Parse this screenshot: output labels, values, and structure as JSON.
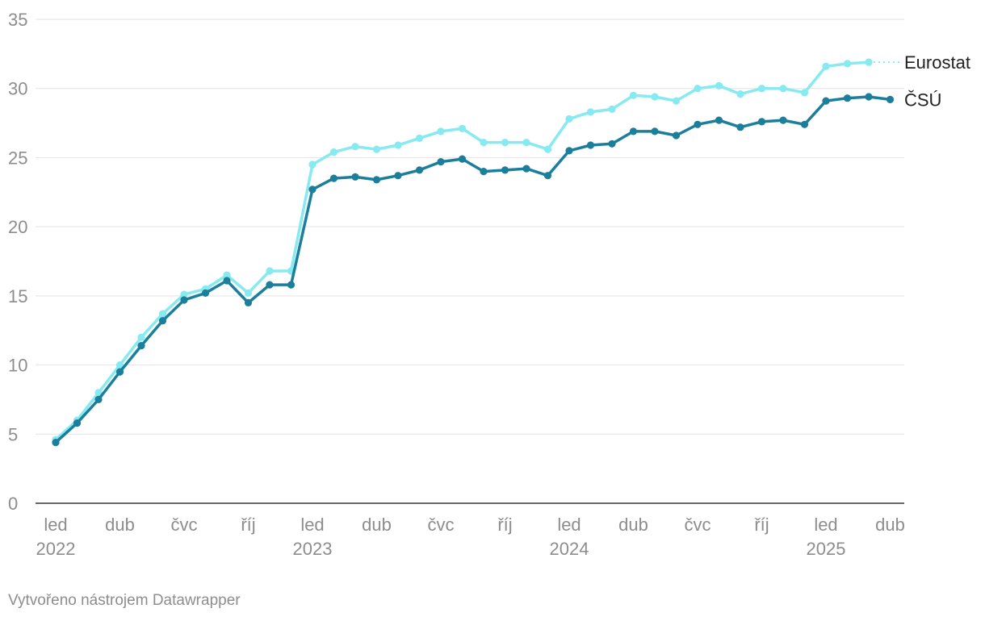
{
  "footer": {
    "credit": "Vytvořeno nástrojem Datawrapper"
  },
  "chart_data": {
    "type": "line",
    "title": "",
    "xlabel": "",
    "ylabel": "",
    "ylim": [
      0,
      35
    ],
    "y_ticks": [
      0,
      5,
      10,
      15,
      20,
      25,
      30,
      35
    ],
    "grid": true,
    "legend": "direct labels at line ends",
    "x_start_month": "2022-01",
    "x_ticks": [
      {
        "month": "2022-01",
        "label": "led",
        "year": "2022"
      },
      {
        "month": "2022-04",
        "label": "dub",
        "year": ""
      },
      {
        "month": "2022-07",
        "label": "čvc",
        "year": ""
      },
      {
        "month": "2022-10",
        "label": "říj",
        "year": ""
      },
      {
        "month": "2023-01",
        "label": "led",
        "year": "2023"
      },
      {
        "month": "2023-04",
        "label": "dub",
        "year": ""
      },
      {
        "month": "2023-07",
        "label": "čvc",
        "year": ""
      },
      {
        "month": "2023-10",
        "label": "říj",
        "year": ""
      },
      {
        "month": "2024-01",
        "label": "led",
        "year": "2024"
      },
      {
        "month": "2024-04",
        "label": "dub",
        "year": ""
      },
      {
        "month": "2024-07",
        "label": "čvc",
        "year": ""
      },
      {
        "month": "2024-10",
        "label": "říj",
        "year": ""
      },
      {
        "month": "2025-01",
        "label": "led",
        "year": "2025"
      },
      {
        "month": "2025-04",
        "label": "dub",
        "year": ""
      }
    ],
    "series": [
      {
        "name": "Eurostat",
        "color": "#86eaf0",
        "values": [
          4.6,
          6.0,
          8.0,
          10.0,
          12.0,
          13.7,
          15.1,
          15.5,
          16.5,
          15.2,
          16.8,
          16.8,
          24.5,
          25.4,
          25.8,
          25.6,
          25.9,
          26.4,
          26.9,
          27.1,
          26.1,
          26.1,
          26.1,
          25.6,
          27.8,
          28.3,
          28.5,
          29.5,
          29.4,
          29.1,
          30.0,
          30.2,
          29.6,
          30.0,
          30.0,
          29.7,
          31.6,
          31.8,
          31.9
        ],
        "label_extension": "dotted"
      },
      {
        "name": "ČSÚ",
        "color": "#1b7f9b",
        "values": [
          4.4,
          5.8,
          7.5,
          9.5,
          11.4,
          13.2,
          14.7,
          15.2,
          16.1,
          14.5,
          15.8,
          15.8,
          22.7,
          23.5,
          23.6,
          23.4,
          23.7,
          24.1,
          24.7,
          24.9,
          24.0,
          24.1,
          24.2,
          23.7,
          25.5,
          25.9,
          26.0,
          26.9,
          26.9,
          26.6,
          27.4,
          27.7,
          27.2,
          27.6,
          27.7,
          27.4,
          29.1,
          29.3,
          29.4,
          29.2
        ]
      }
    ]
  }
}
